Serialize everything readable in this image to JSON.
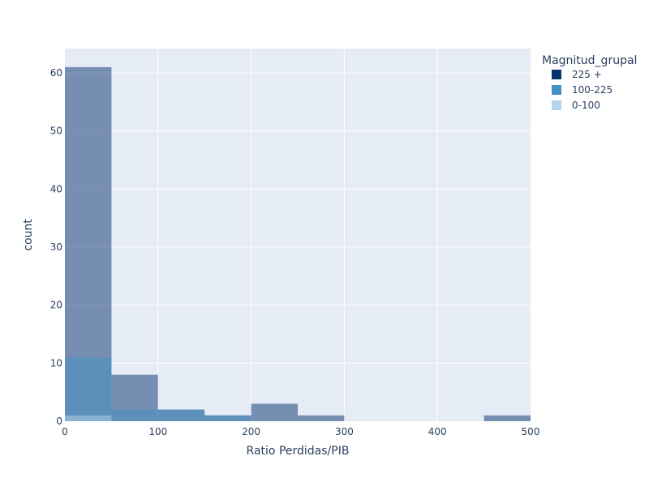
{
  "chart_data": {
    "type": "bar",
    "subtype": "overlaid histogram",
    "xlabel": "Ratio Perdidas/PIB",
    "ylabel": "count",
    "xlim": [
      0,
      500
    ],
    "ylim": [
      0,
      64.2
    ],
    "x_ticks": [
      0,
      100,
      200,
      300,
      400,
      500
    ],
    "y_ticks": [
      0,
      10,
      20,
      30,
      40,
      50,
      60
    ],
    "bin_width": 50,
    "grid": true,
    "legend": {
      "title": "Magnitud_grupal",
      "placement": "top-right outside"
    },
    "series": [
      {
        "name": "225 +",
        "color": "#08306b",
        "opacity": 0.5,
        "bins": [
          {
            "x0": 0,
            "x1": 50,
            "count": 61
          },
          {
            "x0": 50,
            "x1": 100,
            "count": 8
          },
          {
            "x0": 100,
            "x1": 150,
            "count": 2
          },
          {
            "x0": 150,
            "x1": 200,
            "count": 1
          },
          {
            "x0": 200,
            "x1": 250,
            "count": 3
          },
          {
            "x0": 250,
            "x1": 300,
            "count": 1
          },
          {
            "x0": 450,
            "x1": 500,
            "count": 1
          }
        ]
      },
      {
        "name": "100-225",
        "color": "#4292c6",
        "opacity": 0.5,
        "bins": [
          {
            "x0": 0,
            "x1": 50,
            "count": 11
          },
          {
            "x0": 50,
            "x1": 100,
            "count": 2
          },
          {
            "x0": 100,
            "x1": 150,
            "count": 2
          },
          {
            "x0": 150,
            "x1": 200,
            "count": 1
          }
        ]
      },
      {
        "name": "0-100",
        "color": "#b3d4ea",
        "opacity": 0.5,
        "bins": [
          {
            "x0": 0,
            "x1": 50,
            "count": 1
          }
        ]
      }
    ]
  }
}
